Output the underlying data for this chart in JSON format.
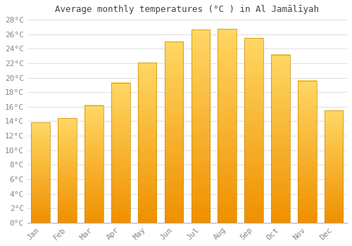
{
  "title": "Average monthly temperatures (°C ) in Al Jamālīyah",
  "months": [
    "Jan",
    "Feb",
    "Mar",
    "Apr",
    "May",
    "Jun",
    "Jul",
    "Aug",
    "Sep",
    "Oct",
    "Nov",
    "Dec"
  ],
  "temperatures": [
    13.8,
    14.4,
    16.2,
    19.3,
    22.1,
    25.0,
    26.6,
    26.7,
    25.5,
    23.2,
    19.6,
    15.5
  ],
  "bar_color_main": "#FFA500",
  "bar_color_light": "#FFD080",
  "bar_border_color": "#CC8800",
  "background_color": "#FFFFFF",
  "grid_color": "#DDDDDD",
  "tick_label_color": "#888888",
  "title_color": "#444444",
  "ylim": [
    0,
    28
  ],
  "yticks": [
    0,
    2,
    4,
    6,
    8,
    10,
    12,
    14,
    16,
    18,
    20,
    22,
    24,
    26,
    28
  ],
  "title_fontsize": 9,
  "tick_fontsize": 8,
  "figsize": [
    5.0,
    3.5
  ],
  "dpi": 100
}
